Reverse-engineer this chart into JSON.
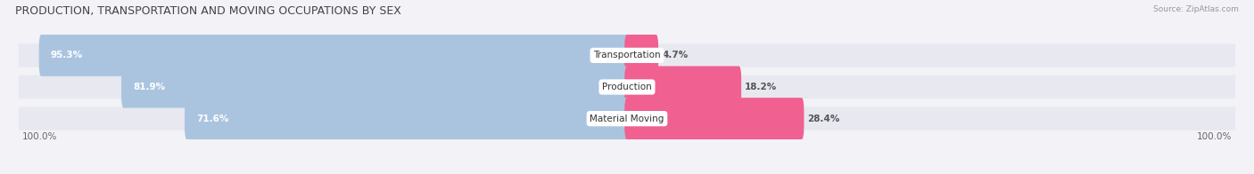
{
  "title": "PRODUCTION, TRANSPORTATION AND MOVING OCCUPATIONS BY SEX",
  "source": "Source: ZipAtlas.com",
  "categories": [
    "Transportation",
    "Production",
    "Material Moving"
  ],
  "male_pct": [
    95.3,
    81.9,
    71.6
  ],
  "female_pct": [
    4.7,
    18.2,
    28.4
  ],
  "male_color": "#aac4e0",
  "female_color": "#f06090",
  "bg_color": "#f2f2f7",
  "row_bg_color": "#e8e8f0",
  "title_fontsize": 9,
  "bar_fontsize": 7.5,
  "cat_fontsize": 7.5,
  "legend_fontsize": 8,
  "axis_label_fontsize": 7.5,
  "bar_height": 0.52,
  "x_left_label": "100.0%",
  "x_right_label": "100.0%"
}
